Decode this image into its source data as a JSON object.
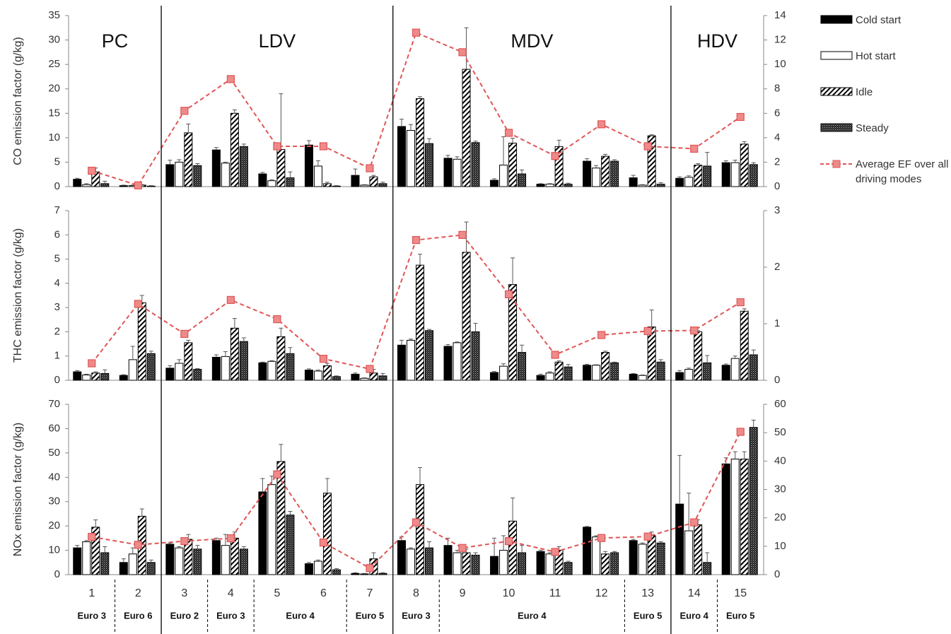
{
  "chart_data": [
    {
      "type": "bar",
      "ylabel": "CO emission factor (g/kg)",
      "ylim": [
        0,
        35
      ],
      "yticks": [
        0,
        5,
        10,
        15,
        20,
        25,
        30,
        35
      ],
      "y2lim": [
        0,
        14
      ],
      "y2ticks": [
        0,
        2,
        4,
        6,
        8,
        10,
        12,
        14
      ],
      "groups": [
        {
          "label": "PC",
          "categories": [
            "1",
            "2"
          ]
        },
        {
          "label": "LDV",
          "categories": [
            "3",
            "4",
            "5",
            "6",
            "7"
          ]
        },
        {
          "label": "MDV",
          "categories": [
            "8",
            "9",
            "10",
            "11",
            "12",
            "13"
          ]
        },
        {
          "label": "HDV",
          "categories": [
            "14",
            "15"
          ]
        }
      ],
      "series": [
        {
          "name": "Cold start",
          "color": "#000000",
          "pattern": "solid",
          "values": [
            1.5,
            0.2,
            4.5,
            7.5,
            2.6,
            8.5,
            2.3,
            12.3,
            5.8,
            1.3,
            0.5,
            5.2,
            1.8,
            1.7,
            4.9
          ],
          "errors": [
            0.2,
            0.1,
            0.9,
            0.5,
            0.3,
            0.9,
            1.3,
            1.5,
            0.6,
            0.3,
            0.1,
            0.5,
            0.5,
            0.3,
            0.4
          ]
        },
        {
          "name": "Hot start",
          "color": "#ffffff",
          "pattern": "solid",
          "values": [
            0.4,
            0.2,
            5.0,
            4.8,
            1.2,
            4.2,
            0.3,
            11.5,
            5.6,
            4.4,
            0.5,
            3.8,
            0.3,
            1.9,
            4.9
          ],
          "errors": [
            0.2,
            0.1,
            0.5,
            0.2,
            0.2,
            1.1,
            0.1,
            1.2,
            0.5,
            5.8,
            0.1,
            0.5,
            0.1,
            0.3,
            0.5
          ]
        },
        {
          "name": "Idle",
          "color": "#000000",
          "pattern": "hatch",
          "values": [
            3.0,
            0.3,
            11.0,
            15.0,
            7.6,
            0.6,
            2.0,
            18.0,
            24.0,
            8.9,
            8.2,
            6.2,
            10.4,
            4.4,
            8.7
          ],
          "errors": [
            0.8,
            0.1,
            1.8,
            0.7,
            11.4,
            0.3,
            0.3,
            0.4,
            8.5,
            1.0,
            1.3,
            0.4,
            0.2,
            0.3,
            0.5
          ]
        },
        {
          "name": "Steady",
          "color": "#000000",
          "pattern": "check",
          "values": [
            0.6,
            0.1,
            4.3,
            8.2,
            1.8,
            0.1,
            0.6,
            8.8,
            9.0,
            2.6,
            0.5,
            5.2,
            0.5,
            4.2,
            4.5
          ],
          "errors": [
            0.5,
            0.1,
            0.4,
            0.5,
            1.2,
            0.1,
            0.3,
            1.0,
            0.3,
            0.8,
            0.2,
            0.3,
            0.3,
            2.8,
            0.4
          ]
        },
        {
          "name": "Average EF over all driving modes",
          "type": "line",
          "axis": "y2",
          "color": "#e05555",
          "values": [
            1.3,
            0.1,
            6.2,
            8.8,
            3.3,
            3.3,
            1.5,
            12.6,
            11.0,
            4.4,
            2.5,
            5.1,
            3.3,
            3.1,
            5.7
          ]
        }
      ]
    },
    {
      "type": "bar",
      "ylabel": "THC emission factor (g/kg)",
      "ylim": [
        0,
        7
      ],
      "yticks": [
        0,
        1,
        2,
        3,
        4,
        5,
        6,
        7
      ],
      "y2lim": [
        0,
        3
      ],
      "y2ticks": [
        0,
        1,
        2,
        3
      ],
      "series": [
        {
          "color": "#000000",
          "pattern": "solid",
          "values": [
            0.35,
            0.2,
            0.5,
            0.95,
            0.72,
            0.42,
            0.25,
            1.45,
            1.4,
            0.32,
            0.2,
            0.62,
            0.25,
            0.32,
            0.62
          ],
          "errors": [
            0.05,
            0.03,
            0.1,
            0.1,
            0.03,
            0.05,
            0.05,
            0.2,
            0.07,
            0.04,
            0.05,
            0.04,
            0.03,
            0.08,
            0.05
          ]
        },
        {
          "color": "#ffffff",
          "pattern": "solid",
          "values": [
            0.22,
            0.85,
            0.7,
            0.98,
            0.78,
            0.38,
            0.08,
            1.65,
            1.55,
            0.58,
            0.3,
            0.62,
            0.2,
            0.45,
            0.9
          ],
          "errors": [
            0.03,
            0.55,
            0.15,
            0.2,
            0.03,
            0.04,
            0.02,
            0.05,
            0.03,
            0.1,
            0.05,
            0.02,
            0.02,
            0.05,
            0.1
          ]
        },
        {
          "color": "#000000",
          "pattern": "hatch",
          "values": [
            0.3,
            3.2,
            1.55,
            2.15,
            1.8,
            0.6,
            0.3,
            4.75,
            5.28,
            3.95,
            0.75,
            1.15,
            2.2,
            2.0,
            2.85
          ],
          "errors": [
            0.05,
            0.3,
            0.1,
            0.4,
            0.35,
            0.1,
            0.15,
            0.45,
            1.25,
            1.1,
            0.05,
            0.05,
            0.7,
            0.05,
            0.1
          ]
        },
        {
          "color": "#000000",
          "pattern": "check",
          "values": [
            0.28,
            1.1,
            0.45,
            1.6,
            1.1,
            0.15,
            0.18,
            2.05,
            2.0,
            1.15,
            0.55,
            0.72,
            0.75,
            0.72,
            1.05
          ],
          "errors": [
            0.15,
            0.1,
            0.03,
            0.15,
            0.25,
            0.03,
            0.1,
            0.05,
            0.35,
            0.3,
            0.1,
            0.03,
            0.1,
            0.3,
            0.2
          ]
        },
        {
          "type": "line",
          "axis": "y2",
          "color": "#e05555",
          "values": [
            0.3,
            1.35,
            0.82,
            1.42,
            1.08,
            0.38,
            0.2,
            2.48,
            2.57,
            1.52,
            0.45,
            0.8,
            0.87,
            0.88,
            1.38
          ]
        }
      ]
    },
    {
      "type": "bar",
      "ylabel": "NOx emission factor (g/kg)",
      "ylim": [
        0,
        70
      ],
      "yticks": [
        0,
        10,
        20,
        30,
        40,
        50,
        60,
        70
      ],
      "y2lim": [
        0,
        60
      ],
      "y2ticks": [
        0,
        10,
        20,
        30,
        40,
        50,
        60
      ],
      "categories": [
        "1",
        "2",
        "3",
        "4",
        "5",
        "6",
        "7",
        "8",
        "9",
        "10",
        "11",
        "12",
        "13",
        "14",
        "15"
      ],
      "standards": [
        {
          "label": "Euro 3",
          "categories": [
            "1"
          ]
        },
        {
          "label": "Euro 6",
          "categories": [
            "2"
          ]
        },
        {
          "label": "Euro 2",
          "categories": [
            "3"
          ]
        },
        {
          "label": "Euro 3",
          "categories": [
            "4"
          ]
        },
        {
          "label": "Euro 4",
          "categories": [
            "5",
            "6"
          ]
        },
        {
          "label": "Euro 5",
          "categories": [
            "7"
          ]
        },
        {
          "label": "Euro 3",
          "categories": [
            "8"
          ]
        },
        {
          "label": "Euro 4",
          "categories": [
            "9",
            "10",
            "11",
            "12"
          ]
        },
        {
          "label": "Euro 5",
          "categories": [
            "13"
          ]
        },
        {
          "label": "Euro 4",
          "categories": [
            "14"
          ]
        },
        {
          "label": "Euro 5",
          "categories": [
            "15"
          ]
        }
      ],
      "series": [
        {
          "color": "#000000",
          "pattern": "solid",
          "values": [
            11,
            5,
            12.5,
            14,
            34,
            4.5,
            0.5,
            14,
            12,
            7.5,
            9.5,
            19.5,
            14,
            29,
            45.5
          ],
          "errors": [
            1,
            1.5,
            0.5,
            1,
            5.5,
            0.5,
            0.3,
            1.5,
            3,
            7.5,
            0.5,
            0.3,
            0.5,
            20,
            2.5
          ]
        },
        {
          "color": "#ffffff",
          "pattern": "solid",
          "values": [
            13.5,
            8.5,
            11,
            12,
            37,
            5.5,
            0.3,
            10.5,
            9,
            10,
            8.5,
            15.5,
            12.5,
            18,
            47.5
          ],
          "errors": [
            0.5,
            2.5,
            0.5,
            4.5,
            3.5,
            0.5,
            0.2,
            0.5,
            1,
            6,
            0.5,
            0.5,
            0.5,
            15.5,
            3
          ]
        },
        {
          "color": "#000000",
          "pattern": "hatch",
          "values": [
            19.5,
            24,
            14.5,
            15,
            46.5,
            33.5,
            6.5,
            37,
            9,
            22,
            10,
            8.5,
            16,
            20.5,
            47.5
          ],
          "errors": [
            3,
            3,
            2,
            2.5,
            7,
            6,
            2.5,
            7,
            1.5,
            9.5,
            1.5,
            1,
            1.5,
            2,
            3
          ]
        },
        {
          "color": "#000000",
          "pattern": "check",
          "values": [
            9,
            5,
            10.5,
            10.5,
            24.5,
            2,
            0.5,
            11,
            8,
            9,
            5,
            9,
            13,
            5,
            60.5
          ],
          "errors": [
            2.5,
            1,
            1.5,
            1,
            1.5,
            0.5,
            0.3,
            2.5,
            1,
            3,
            0.5,
            0.5,
            0.5,
            4,
            3
          ]
        },
        {
          "type": "line",
          "axis": "y2",
          "color": "#e05555",
          "values": [
            13.3,
            10.5,
            11.8,
            12.8,
            35.3,
            11.3,
            2.3,
            18.4,
            9.4,
            11.8,
            8.0,
            12.9,
            13.4,
            18.4,
            50.3
          ]
        }
      ]
    }
  ]
}
